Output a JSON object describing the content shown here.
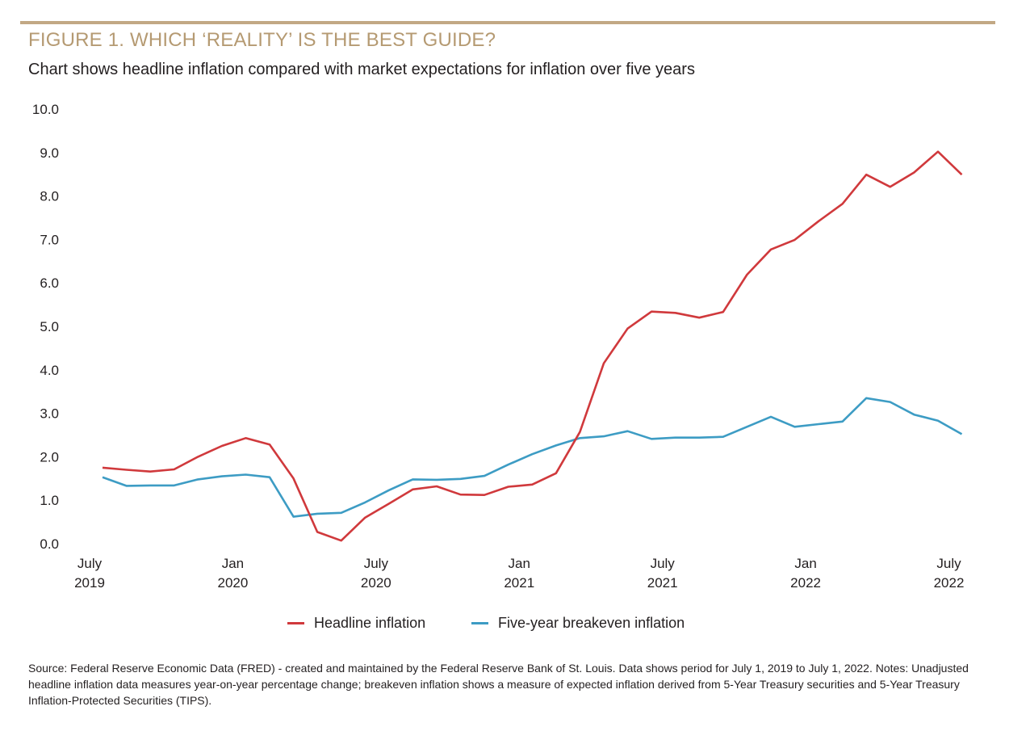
{
  "header": {
    "title": "FIGURE 1. WHICH ‘REALITY’ IS THE BEST GUIDE?",
    "subtitle": "Chart shows headline inflation compared with market expectations for inflation over five years"
  },
  "colors": {
    "accent": "#b59a72",
    "headline": "#d0393c",
    "breakeven": "#3d9cc4"
  },
  "chart_data": {
    "type": "line",
    "title": "FIGURE 1. WHICH ‘REALITY’ IS THE BEST GUIDE?",
    "subtitle": "Chart shows headline inflation compared with market expectations for inflation over five years",
    "xlabel": "",
    "ylabel": "",
    "ylim": [
      0,
      10
    ],
    "yticks": [
      "0.0",
      "1.0",
      "2.0",
      "3.0",
      "4.0",
      "5.0",
      "6.0",
      "7.0",
      "8.0",
      "9.0",
      "10.0"
    ],
    "xticks": [
      {
        "month_index": 0,
        "line1": "July",
        "line2": "2019"
      },
      {
        "month_index": 6,
        "line1": "Jan",
        "line2": "2020"
      },
      {
        "month_index": 12,
        "line1": "July",
        "line2": "2020"
      },
      {
        "month_index": 18,
        "line1": "Jan",
        "line2": "2021"
      },
      {
        "month_index": 24,
        "line1": "July",
        "line2": "2021"
      },
      {
        "month_index": 30,
        "line1": "Jan",
        "line2": "2022"
      },
      {
        "month_index": 36,
        "line1": "July",
        "line2": "2022"
      }
    ],
    "x": [
      "2019-07",
      "2019-08",
      "2019-09",
      "2019-10",
      "2019-11",
      "2019-12",
      "2020-01",
      "2020-02",
      "2020-03",
      "2020-04",
      "2020-05",
      "2020-06",
      "2020-07",
      "2020-08",
      "2020-09",
      "2020-10",
      "2020-11",
      "2020-12",
      "2021-01",
      "2021-02",
      "2021-03",
      "2021-04",
      "2021-05",
      "2021-06",
      "2021-07",
      "2021-08",
      "2021-09",
      "2021-10",
      "2021-11",
      "2021-12",
      "2022-01",
      "2022-02",
      "2022-03",
      "2022-04",
      "2022-05",
      "2022-06",
      "2022-07"
    ],
    "grid": false,
    "legend_position": "bottom-center",
    "series": [
      {
        "name": "Headline inflation",
        "color": "#d0393c",
        "values": [
          1.75,
          1.7,
          1.66,
          1.71,
          2.0,
          2.25,
          2.43,
          2.28,
          1.5,
          0.27,
          0.07,
          0.6,
          0.92,
          1.25,
          1.32,
          1.13,
          1.12,
          1.31,
          1.36,
          1.62,
          2.57,
          4.15,
          4.95,
          5.34,
          5.31,
          5.2,
          5.33,
          6.19,
          6.77,
          6.99,
          7.42,
          7.82,
          8.49,
          8.21,
          8.54,
          9.02,
          8.49
        ]
      },
      {
        "name": "Five-year breakeven inflation",
        "color": "#3d9cc4",
        "values": [
          1.53,
          1.33,
          1.34,
          1.34,
          1.48,
          1.55,
          1.59,
          1.53,
          0.62,
          0.69,
          0.71,
          0.95,
          1.23,
          1.48,
          1.47,
          1.49,
          1.56,
          1.82,
          2.06,
          2.26,
          2.43,
          2.47,
          2.59,
          2.41,
          2.44,
          2.44,
          2.46,
          2.69,
          2.92,
          2.69,
          2.75,
          2.81,
          3.35,
          3.26,
          2.97,
          2.83,
          2.52
        ]
      }
    ]
  },
  "legend": {
    "items": [
      {
        "label": "Headline inflation"
      },
      {
        "label": "Five-year breakeven inflation"
      }
    ]
  },
  "footer": {
    "source": "Source: Federal Reserve Economic Data (FRED) - created and maintained by the Federal Reserve Bank of St. Louis. Data shows period for July 1, 2019 to July 1, 2022. Notes: Unadjusted headline inflation data measures year-on-year percentage change; breakeven inflation shows a measure of expected inflation derived from 5-Year Treasury securities and 5-Year Treasury Inflation-Protected Securities (TIPS)."
  }
}
